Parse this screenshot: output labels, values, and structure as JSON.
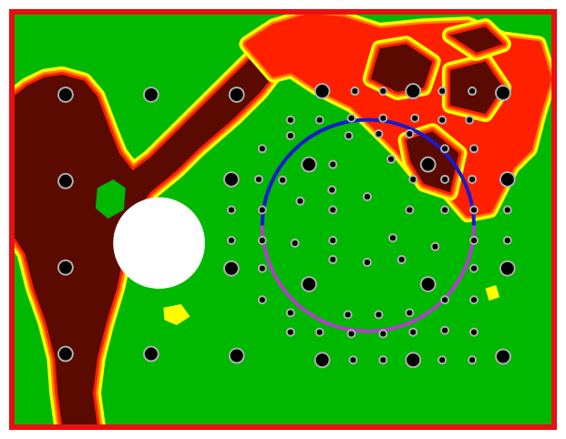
{
  "chart_data": {
    "type": "scatter",
    "tick_labels": false,
    "grid": false,
    "xlim": [
      0,
      621
    ],
    "ylim": [
      482,
      0
    ],
    "regions": [
      {
        "color": "#5a0a00",
        "points": [
          [
            5,
            100
          ],
          [
            20,
            88
          ],
          [
            40,
            78
          ],
          [
            60,
            75
          ],
          [
            85,
            82
          ],
          [
            100,
            100
          ],
          [
            115,
            140
          ],
          [
            125,
            165
          ],
          [
            140,
            185
          ],
          [
            160,
            170
          ],
          [
            200,
            130
          ],
          [
            230,
            100
          ],
          [
            260,
            70
          ],
          [
            285,
            45
          ],
          [
            305,
            40
          ],
          [
            312,
            60
          ],
          [
            285,
            95
          ],
          [
            255,
            125
          ],
          [
            215,
            160
          ],
          [
            190,
            185
          ],
          [
            160,
            210
          ],
          [
            142,
            235
          ],
          [
            135,
            260
          ],
          [
            122,
            320
          ],
          [
            110,
            360
          ],
          [
            100,
            400
          ],
          [
            95,
            440
          ],
          [
            100,
            477
          ],
          [
            60,
            477
          ],
          [
            55,
            440
          ],
          [
            52,
            400
          ],
          [
            42,
            360
          ],
          [
            28,
            320
          ],
          [
            18,
            280
          ],
          [
            5,
            260
          ]
        ]
      },
      {
        "color": "#ff2000",
        "points": [
          [
            270,
            40
          ],
          [
            300,
            20
          ],
          [
            340,
            8
          ],
          [
            380,
            12
          ],
          [
            420,
            25
          ],
          [
            470,
            20
          ],
          [
            520,
            18
          ],
          [
            560,
            35
          ],
          [
            600,
            40
          ],
          [
            612,
            80
          ],
          [
            600,
            120
          ],
          [
            590,
            160
          ],
          [
            570,
            180
          ],
          [
            545,
            230
          ],
          [
            520,
            235
          ],
          [
            490,
            200
          ],
          [
            460,
            185
          ],
          [
            440,
            160
          ],
          [
            420,
            140
          ],
          [
            390,
            110
          ],
          [
            350,
            90
          ],
          [
            320,
            70
          ],
          [
            300,
            75
          ]
        ]
      },
      {
        "color": "#5a0a00",
        "points": [
          [
            420,
            45
          ],
          [
            450,
            40
          ],
          [
            480,
            60
          ],
          [
            470,
            90
          ],
          [
            440,
            95
          ],
          [
            410,
            80
          ]
        ]
      },
      {
        "color": "#5a0a00",
        "points": [
          [
            500,
            70
          ],
          [
            540,
            60
          ],
          [
            560,
            90
          ],
          [
            540,
            120
          ],
          [
            500,
            110
          ]
        ]
      },
      {
        "color": "#5a0a00",
        "points": [
          [
            450,
            150
          ],
          [
            480,
            140
          ],
          [
            510,
            165
          ],
          [
            500,
            210
          ],
          [
            470,
            200
          ],
          [
            455,
            175
          ]
        ]
      },
      {
        "color": "#5a0a00",
        "points": [
          [
            500,
            30
          ],
          [
            540,
            20
          ],
          [
            560,
            40
          ],
          [
            530,
            50
          ]
        ]
      },
      {
        "color": "#00b800",
        "points": [
          [
            100,
            205
          ],
          [
            118,
            195
          ],
          [
            132,
            205
          ],
          [
            130,
            230
          ],
          [
            112,
            240
          ],
          [
            98,
            228
          ]
        ]
      },
      {
        "color": "#ffff00",
        "points": [
          [
            175,
            342
          ],
          [
            195,
            338
          ],
          [
            205,
            352
          ],
          [
            190,
            362
          ],
          [
            176,
            356
          ]
        ]
      },
      {
        "color": "#ffff00",
        "points": [
          [
            540,
            320
          ],
          [
            552,
            316
          ],
          [
            556,
            330
          ],
          [
            544,
            334
          ]
        ]
      }
    ],
    "disk": {
      "center": [
        170,
        268
      ],
      "radius": 52,
      "color": "#ffffff"
    },
    "circle": {
      "center": [
        407,
        248
      ],
      "radius": 120,
      "colors": [
        "#1a1ad0",
        "#b040c8"
      ]
    },
    "series": [
      {
        "color": "#000000",
        "marker": "circle",
        "points": [
          [
            64,
            98
          ],
          [
            161,
            98
          ],
          [
            258,
            98
          ],
          [
            355,
            94
          ],
          [
            458,
            94
          ],
          [
            560,
            96
          ],
          [
            64,
            197
          ],
          [
            252,
            195
          ],
          [
            565,
            195
          ],
          [
            340,
            178
          ],
          [
            475,
            178
          ],
          [
            64,
            296
          ],
          [
            252,
            297
          ],
          [
            565,
            297
          ],
          [
            340,
            315
          ],
          [
            475,
            315
          ],
          [
            64,
            395
          ],
          [
            161,
            395
          ],
          [
            258,
            397
          ],
          [
            355,
            402
          ],
          [
            458,
            402
          ],
          [
            560,
            398
          ]
        ]
      },
      {
        "color": "#000000",
        "marker": "circle",
        "points": [
          [
            392,
            94
          ],
          [
            424,
            94
          ],
          [
            491,
            94
          ],
          [
            525,
            94
          ],
          [
            319,
            127
          ],
          [
            352,
            127
          ],
          [
            388,
            125
          ],
          [
            424,
            125
          ],
          [
            460,
            125
          ],
          [
            491,
            127
          ],
          [
            522,
            127
          ],
          [
            287,
            160
          ],
          [
            319,
            145
          ],
          [
            385,
            145
          ],
          [
            419,
            143
          ],
          [
            454,
            143
          ],
          [
            494,
            160
          ],
          [
            527,
            160
          ],
          [
            367,
            178
          ],
          [
            433,
            172
          ],
          [
            283,
            195
          ],
          [
            310,
            196
          ],
          [
            366,
            207
          ],
          [
            458,
            195
          ],
          [
            494,
            195
          ],
          [
            525,
            195
          ],
          [
            252,
            230
          ],
          [
            287,
            230
          ],
          [
            330,
            220
          ],
          [
            367,
            230
          ],
          [
            406,
            215
          ],
          [
            454,
            230
          ],
          [
            494,
            230
          ],
          [
            527,
            230
          ],
          [
            565,
            230
          ],
          [
            252,
            265
          ],
          [
            287,
            265
          ],
          [
            324,
            268
          ],
          [
            367,
            265
          ],
          [
            435,
            262
          ],
          [
            483,
            272
          ],
          [
            527,
            265
          ],
          [
            565,
            265
          ],
          [
            287,
            297
          ],
          [
            367,
            287
          ],
          [
            406,
            290
          ],
          [
            445,
            287
          ],
          [
            527,
            297
          ],
          [
            287,
            333
          ],
          [
            319,
            348
          ],
          [
            384,
            350
          ],
          [
            419,
            350
          ],
          [
            454,
            348
          ],
          [
            494,
            333
          ],
          [
            527,
            333
          ],
          [
            319,
            370
          ],
          [
            352,
            370
          ],
          [
            388,
            372
          ],
          [
            424,
            372
          ],
          [
            458,
            370
          ],
          [
            494,
            368
          ],
          [
            527,
            370
          ],
          [
            390,
            402
          ],
          [
            424,
            402
          ],
          [
            491,
            402
          ],
          [
            525,
            402
          ]
        ]
      }
    ]
  }
}
